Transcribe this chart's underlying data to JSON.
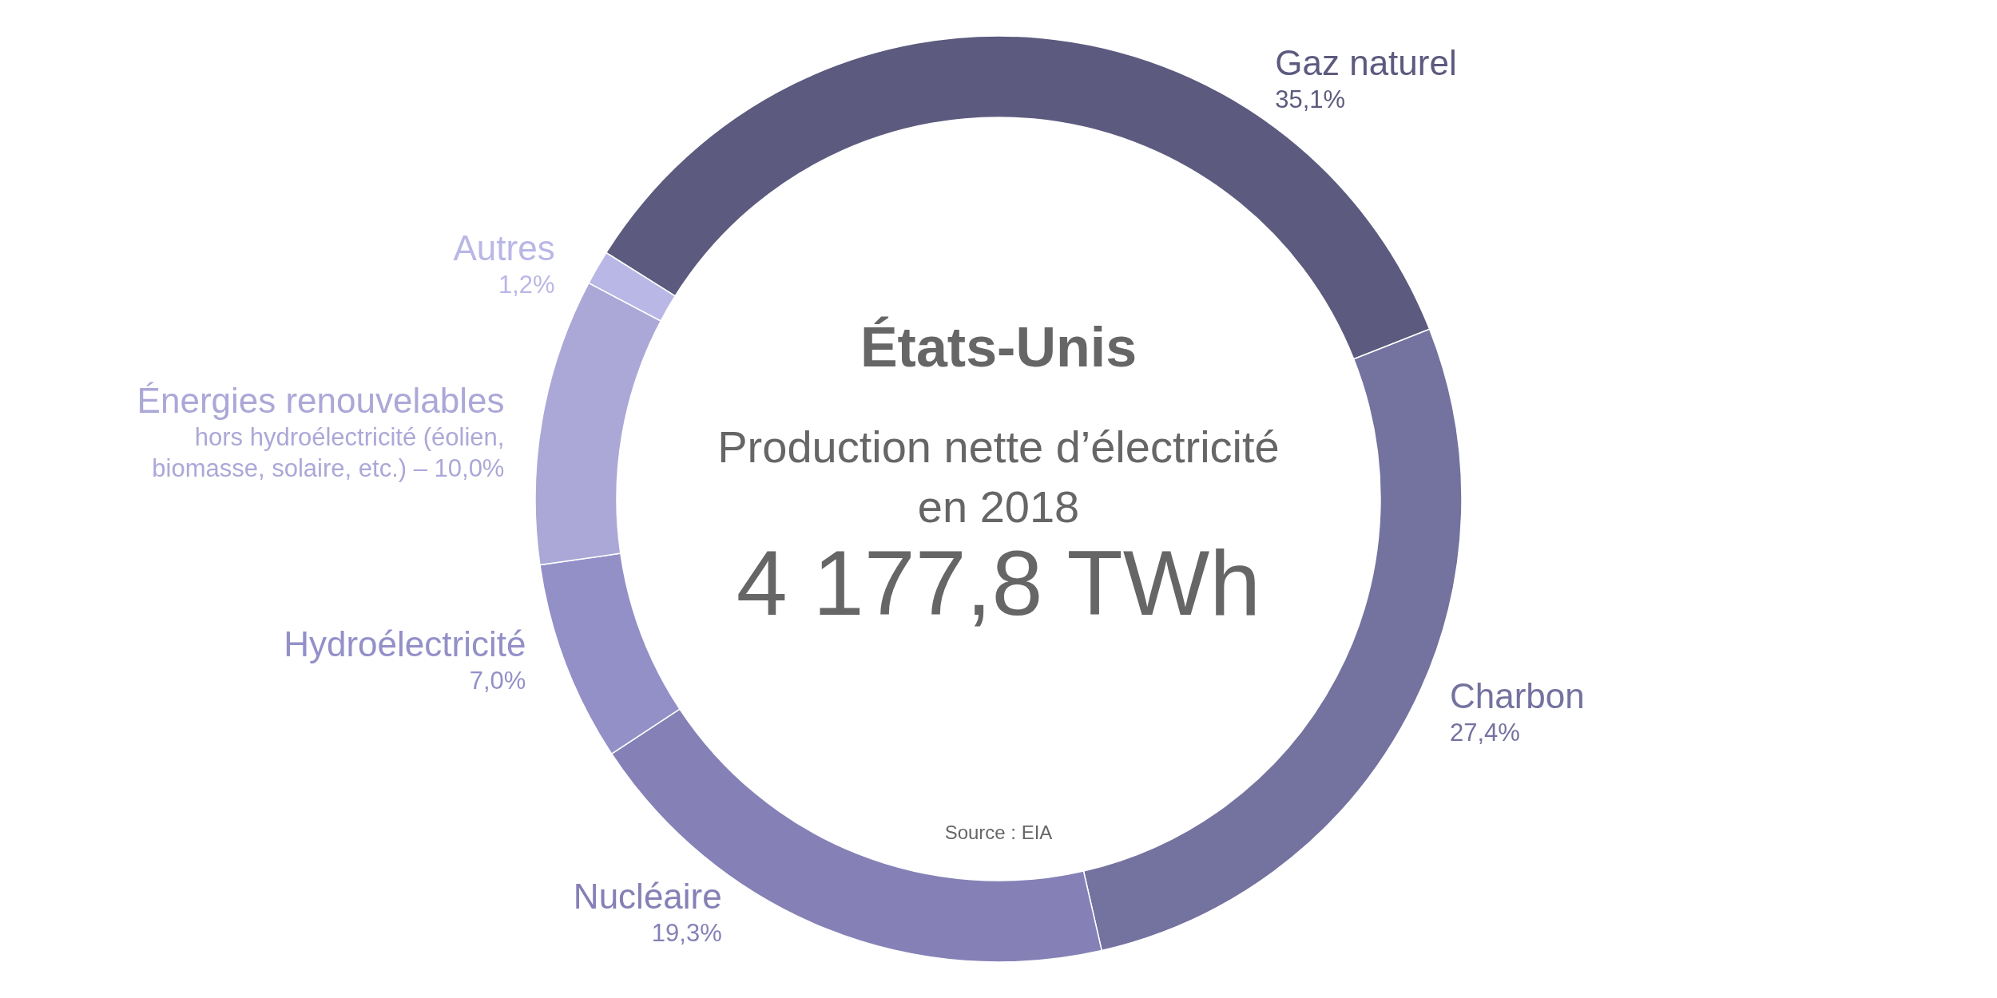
{
  "chart_data": {
    "type": "donut",
    "title": "États-Unis",
    "subtitle": "Production nette d’électricité en 2018",
    "categories": [
      "Gaz naturel",
      "Charbon",
      "Nucléaire",
      "Hydroélectricité",
      "Énergies renouvelables hors hydroélectricité (éolien, biomasse, solaire, etc.) –",
      "Autres"
    ],
    "values": [
      35.1,
      27.4,
      19.3,
      7.0,
      10.0,
      1.2
    ],
    "colors": [
      "#5c5a7e",
      "#74729f",
      "#8581b6",
      "#9390c8",
      "#aba8d8",
      "#b9b7e6"
    ],
    "value_labels": [
      "35,1%",
      "27,4%",
      "19,3%",
      "7,0%",
      "10,0%",
      "1,2%"
    ],
    "annotations": [
      "4 177,8 TWh",
      "Source : EIA"
    ]
  }
}
